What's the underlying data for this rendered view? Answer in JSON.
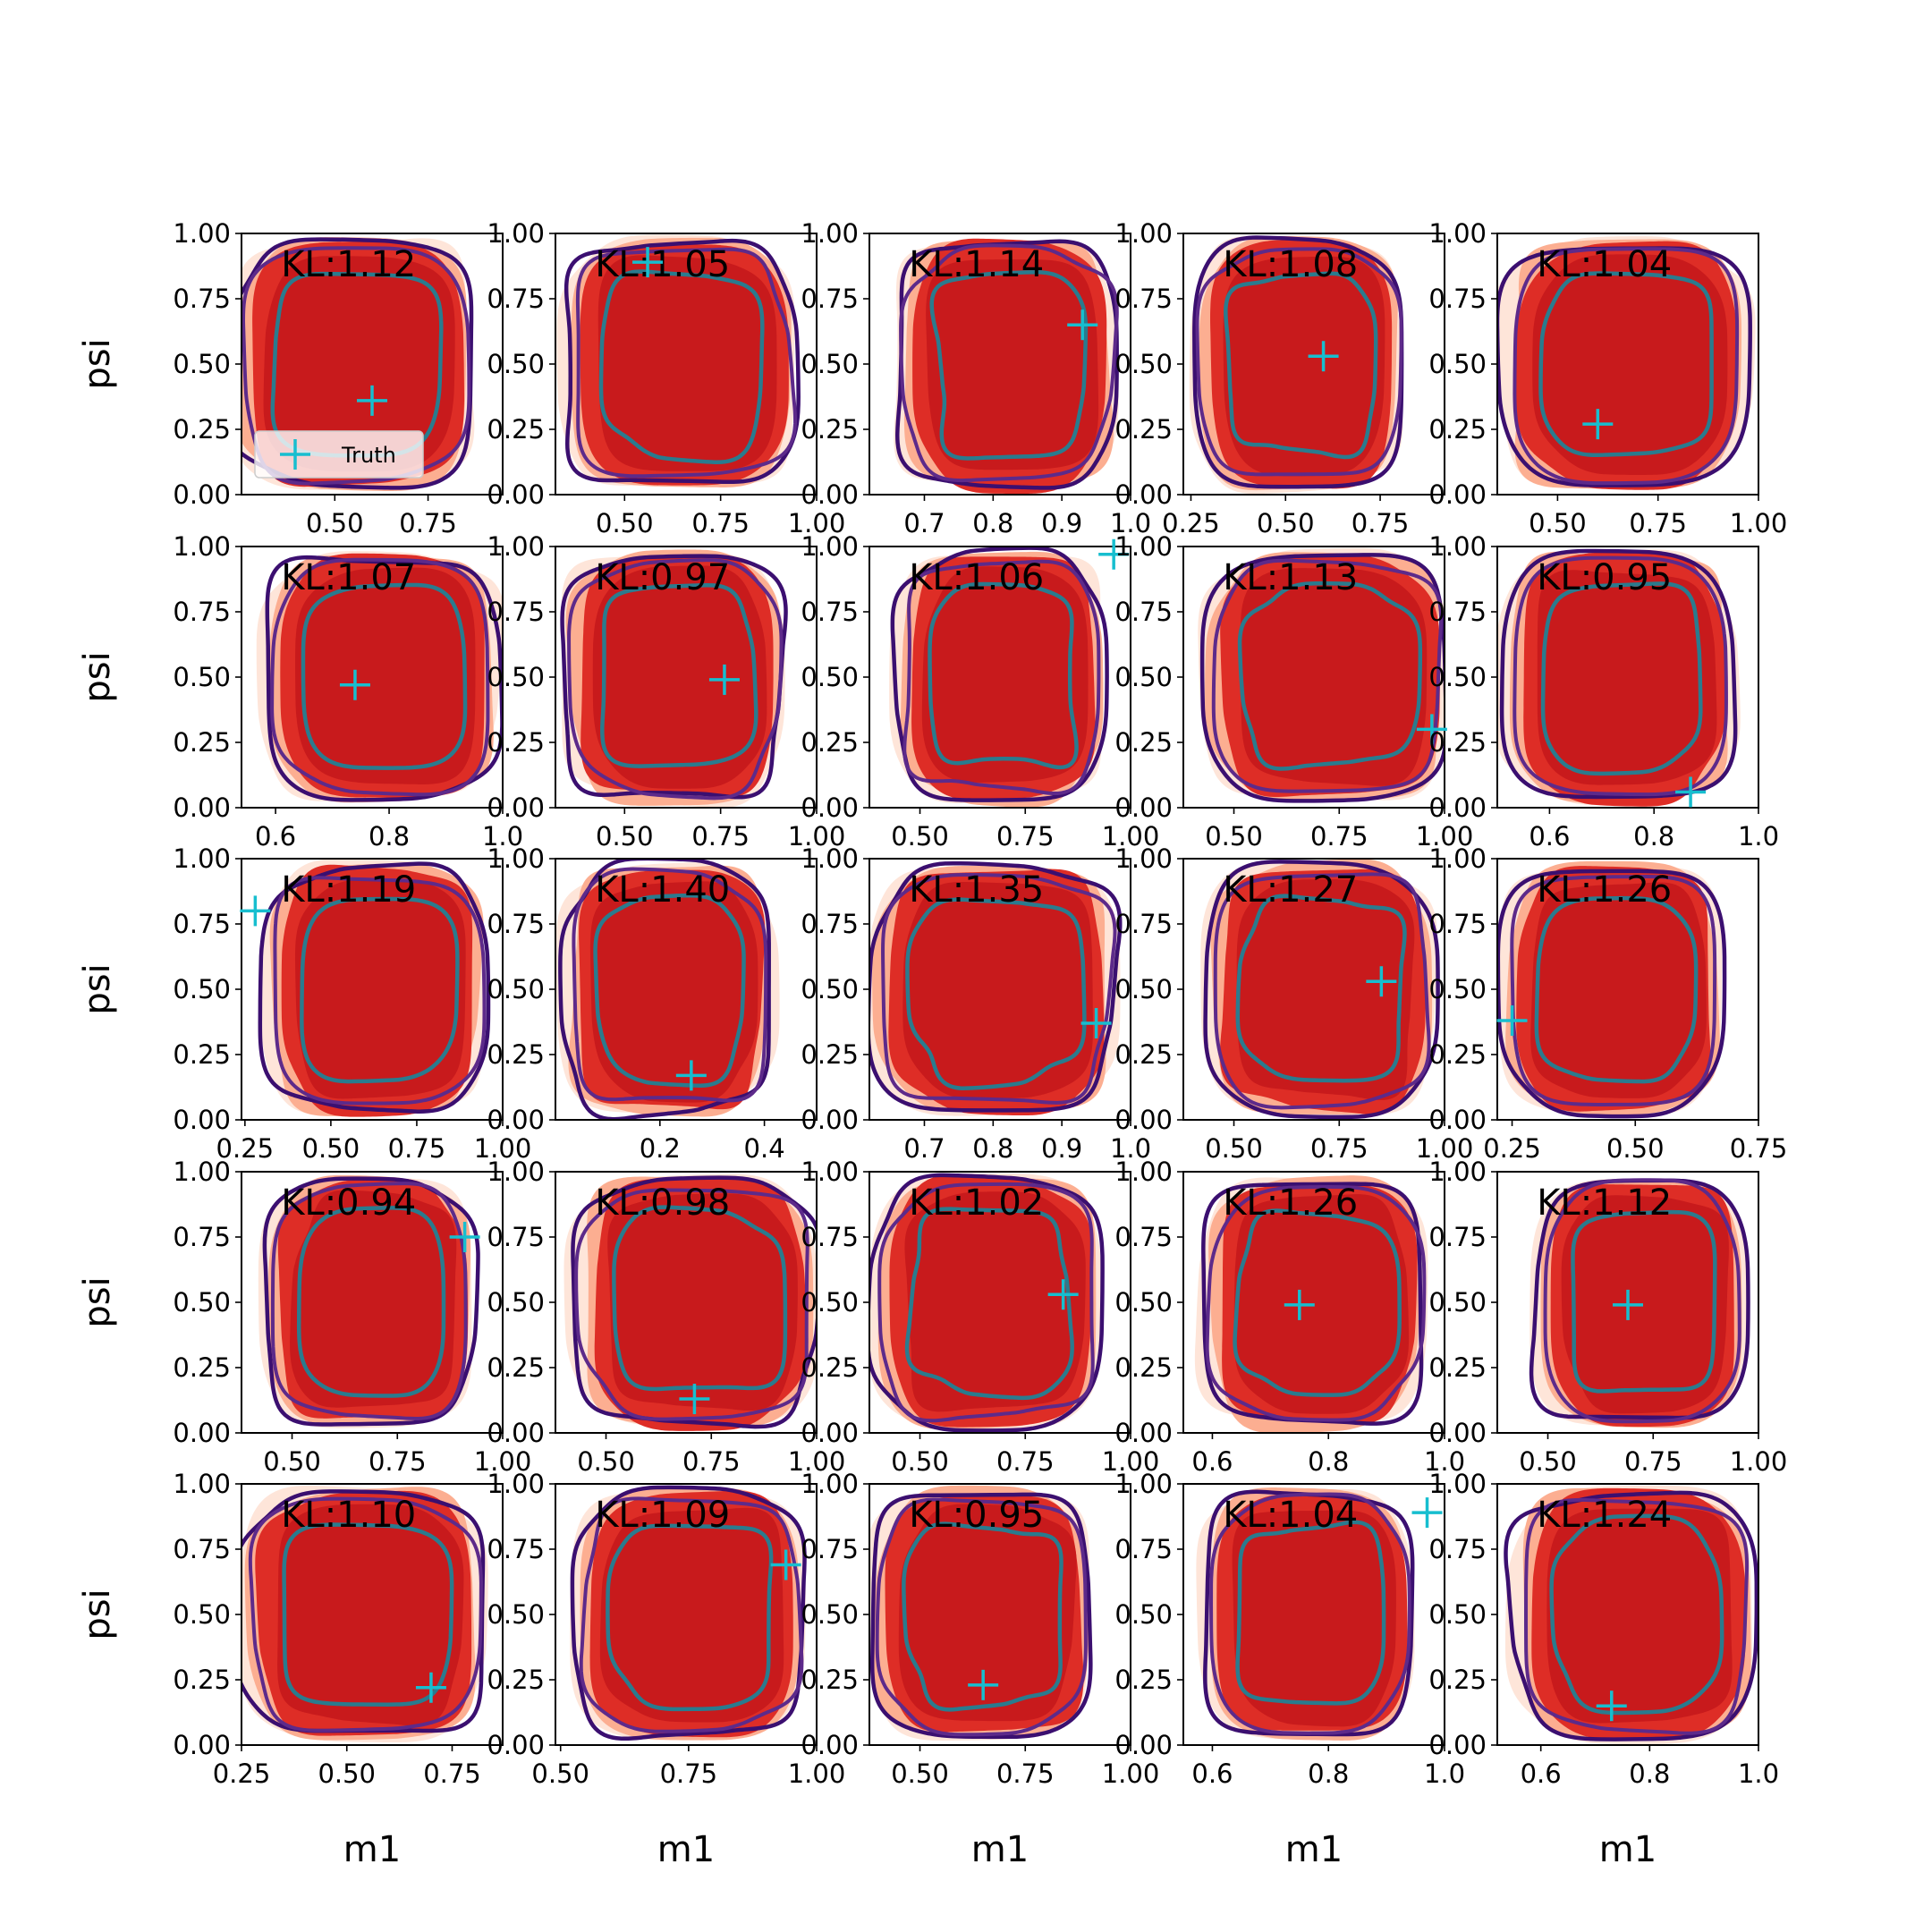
{
  "figure": {
    "ylabel": "psi",
    "xlabel": "m1",
    "legend_label": "Truth",
    "colors": {
      "fill_levels": [
        "#fee5d9",
        "#fcae91",
        "#de2d26",
        "#c81a1c"
      ],
      "outer_contour": "#3b0f70",
      "middle_contour": "#5d2a8a",
      "inner_contour": "#2a7b8e",
      "truth_marker": "#17becf",
      "axes": "#000000"
    }
  },
  "chart_data": [
    {
      "type": "contour",
      "title": "KL:1.12",
      "xticks": [
        "0.50",
        "0.75"
      ],
      "xlim": [
        0.25,
        0.95
      ],
      "ylim": [
        0,
        1
      ],
      "yticks": [
        "0.00",
        "0.25",
        "0.50",
        "0.75",
        "1.00"
      ],
      "truth": {
        "x": 0.6,
        "y": 0.36
      },
      "legend": "Truth"
    },
    {
      "type": "contour",
      "title": "KL:1.05",
      "xticks": [
        "0.50",
        "0.75",
        "1.00"
      ],
      "xlim": [
        0.32,
        1.0
      ],
      "ylim": [
        0,
        1
      ],
      "yticks": [
        "0.00",
        "0.25",
        "0.50",
        "0.75",
        "1.00"
      ],
      "truth": {
        "x": 0.56,
        "y": 0.89
      }
    },
    {
      "type": "contour",
      "title": "KL:1.14",
      "xticks": [
        "0.7",
        "0.8",
        "0.9",
        "1.0"
      ],
      "xlim": [
        0.62,
        1.0
      ],
      "ylim": [
        0,
        1
      ],
      "yticks": [
        "0.00",
        "0.25",
        "0.50",
        "0.75",
        "1.00"
      ],
      "truth": {
        "x": 0.93,
        "y": 0.65
      }
    },
    {
      "type": "contour",
      "title": "KL:1.08",
      "xticks": [
        "0.25",
        "0.50",
        "0.75"
      ],
      "xlim": [
        0.23,
        0.92
      ],
      "ylim": [
        0,
        1
      ],
      "yticks": [
        "0.00",
        "0.25",
        "0.50",
        "0.75",
        "1.00"
      ],
      "truth": {
        "x": 0.6,
        "y": 0.53
      }
    },
    {
      "type": "contour",
      "title": "KL:1.04",
      "xticks": [
        "0.50",
        "0.75",
        "1.00"
      ],
      "xlim": [
        0.35,
        1.0
      ],
      "ylim": [
        0,
        1
      ],
      "yticks": [
        "0.00",
        "0.25",
        "0.50",
        "0.75",
        "1.00"
      ],
      "truth": {
        "x": 0.6,
        "y": 0.27
      }
    },
    {
      "type": "contour",
      "title": "KL:1.07",
      "xticks": [
        "0.6",
        "0.8",
        "1.0"
      ],
      "xlim": [
        0.54,
        1.0
      ],
      "ylim": [
        0,
        1
      ],
      "yticks": [
        "0.00",
        "0.25",
        "0.50",
        "0.75",
        "1.00"
      ],
      "truth": {
        "x": 0.74,
        "y": 0.47
      }
    },
    {
      "type": "contour",
      "title": "KL:0.97",
      "xticks": [
        "0.50",
        "0.75",
        "1.00"
      ],
      "xlim": [
        0.32,
        1.0
      ],
      "ylim": [
        0,
        1
      ],
      "yticks": [
        "0.00",
        "0.25",
        "0.50",
        "0.75",
        "1.00"
      ],
      "truth": {
        "x": 0.76,
        "y": 0.49
      }
    },
    {
      "type": "contour",
      "title": "KL:1.06",
      "xticks": [
        "0.50",
        "0.75",
        "1.00"
      ],
      "xlim": [
        0.38,
        1.0
      ],
      "ylim": [
        0,
        1
      ],
      "yticks": [
        "0.00",
        "0.25",
        "0.50",
        "0.75",
        "1.00"
      ],
      "truth": {
        "x": 0.96,
        "y": 0.97
      }
    },
    {
      "type": "contour",
      "title": "KL:1.13",
      "xticks": [
        "0.50",
        "0.75",
        "1.00"
      ],
      "xlim": [
        0.38,
        1.0
      ],
      "ylim": [
        0,
        1
      ],
      "yticks": [
        "0.00",
        "0.25",
        "0.50",
        "0.75",
        "1.00"
      ],
      "truth": {
        "x": 0.97,
        "y": 0.3
      }
    },
    {
      "type": "contour",
      "title": "KL:0.95",
      "xticks": [
        "0.6",
        "0.8",
        "1.0"
      ],
      "xlim": [
        0.5,
        1.0
      ],
      "ylim": [
        0,
        1
      ],
      "yticks": [
        "0.00",
        "0.25",
        "0.50",
        "0.75",
        "1.00"
      ],
      "truth": {
        "x": 0.87,
        "y": 0.06
      }
    },
    {
      "type": "contour",
      "title": "KL:1.19",
      "xticks": [
        "0.25",
        "0.50",
        "0.75",
        "1.00"
      ],
      "xlim": [
        0.24,
        1.0
      ],
      "ylim": [
        0,
        1
      ],
      "yticks": [
        "0.00",
        "0.25",
        "0.50",
        "0.75",
        "1.00"
      ],
      "truth": {
        "x": 0.28,
        "y": 0.8
      }
    },
    {
      "type": "contour",
      "title": "KL:1.40",
      "xticks": [
        "0.2",
        "0.4"
      ],
      "xlim": [
        0.0,
        0.5
      ],
      "ylim": [
        0,
        1
      ],
      "yticks": [
        "0.00",
        "0.25",
        "0.50",
        "0.75",
        "1.00"
      ],
      "truth": {
        "x": 0.26,
        "y": 0.17
      }
    },
    {
      "type": "contour",
      "title": "KL:1.35",
      "xticks": [
        "0.7",
        "0.8",
        "0.9",
        "1.0"
      ],
      "xlim": [
        0.62,
        1.0
      ],
      "ylim": [
        0,
        1
      ],
      "yticks": [
        "0.00",
        "0.25",
        "0.50",
        "0.75",
        "1.00"
      ],
      "truth": {
        "x": 0.95,
        "y": 0.37
      }
    },
    {
      "type": "contour",
      "title": "KL:1.27",
      "xticks": [
        "0.50",
        "0.75",
        "1.00"
      ],
      "xlim": [
        0.38,
        1.0
      ],
      "ylim": [
        0,
        1
      ],
      "yticks": [
        "0.00",
        "0.25",
        "0.50",
        "0.75",
        "1.00"
      ],
      "truth": {
        "x": 0.85,
        "y": 0.53
      }
    },
    {
      "type": "contour",
      "title": "KL:1.26",
      "xticks": [
        "0.25",
        "0.50",
        "0.75"
      ],
      "xlim": [
        0.22,
        0.75
      ],
      "ylim": [
        0,
        1
      ],
      "yticks": [
        "0.00",
        "0.25",
        "0.50",
        "0.75",
        "1.00"
      ],
      "truth": {
        "x": 0.25,
        "y": 0.38
      }
    },
    {
      "type": "contour",
      "title": "KL:0.94",
      "xticks": [
        "0.50",
        "0.75",
        "1.00"
      ],
      "xlim": [
        0.38,
        1.0
      ],
      "ylim": [
        0,
        1
      ],
      "yticks": [
        "0.00",
        "0.25",
        "0.50",
        "0.75",
        "1.00"
      ],
      "truth": {
        "x": 0.91,
        "y": 0.75
      }
    },
    {
      "type": "contour",
      "title": "KL:0.98",
      "xticks": [
        "0.50",
        "0.75",
        "1.00"
      ],
      "xlim": [
        0.38,
        1.0
      ],
      "ylim": [
        0,
        1
      ],
      "yticks": [
        "0.00",
        "0.25",
        "0.50",
        "0.75",
        "1.00"
      ],
      "truth": {
        "x": 0.71,
        "y": 0.13
      }
    },
    {
      "type": "contour",
      "title": "KL:1.02",
      "xticks": [
        "0.50",
        "0.75",
        "1.00"
      ],
      "xlim": [
        0.38,
        1.0
      ],
      "ylim": [
        0,
        1
      ],
      "yticks": [
        "0.00",
        "0.25",
        "0.50",
        "0.75",
        "1.00"
      ],
      "truth": {
        "x": 0.84,
        "y": 0.53
      }
    },
    {
      "type": "contour",
      "title": "KL:1.26",
      "xticks": [
        "0.6",
        "0.8",
        "1.0"
      ],
      "xlim": [
        0.55,
        1.0
      ],
      "ylim": [
        0,
        1
      ],
      "yticks": [
        "0.00",
        "0.25",
        "0.50",
        "0.75",
        "1.00"
      ],
      "truth": {
        "x": 0.75,
        "y": 0.49
      }
    },
    {
      "type": "contour",
      "title": "KL:1.12",
      "xticks": [
        "0.50",
        "0.75",
        "1.00"
      ],
      "xlim": [
        0.38,
        1.0
      ],
      "ylim": [
        0,
        1
      ],
      "yticks": [
        "0.00",
        "0.25",
        "0.50",
        "0.75",
        "1.00"
      ],
      "truth": {
        "x": 0.69,
        "y": 0.49
      }
    },
    {
      "type": "contour",
      "title": "KL:1.10",
      "xticks": [
        "0.25",
        "0.50",
        "0.75"
      ],
      "xlim": [
        0.25,
        0.87
      ],
      "ylim": [
        0,
        1
      ],
      "yticks": [
        "0.00",
        "0.25",
        "0.50",
        "0.75",
        "1.00"
      ],
      "truth": {
        "x": 0.7,
        "y": 0.22
      }
    },
    {
      "type": "contour",
      "title": "KL:1.09",
      "xticks": [
        "0.50",
        "0.75",
        "1.00"
      ],
      "xlim": [
        0.49,
        1.0
      ],
      "ylim": [
        0,
        1
      ],
      "yticks": [
        "0.00",
        "0.25",
        "0.50",
        "0.75",
        "1.00"
      ],
      "truth": {
        "x": 0.94,
        "y": 0.69
      }
    },
    {
      "type": "contour",
      "title": "KL:0.95",
      "xticks": [
        "0.50",
        "0.75",
        "1.00"
      ],
      "xlim": [
        0.38,
        1.0
      ],
      "ylim": [
        0,
        1
      ],
      "yticks": [
        "0.00",
        "0.25",
        "0.50",
        "0.75",
        "1.00"
      ],
      "truth": {
        "x": 0.65,
        "y": 0.23
      }
    },
    {
      "type": "contour",
      "title": "KL:1.04",
      "xticks": [
        "0.6",
        "0.8",
        "1.0"
      ],
      "xlim": [
        0.55,
        1.0
      ],
      "ylim": [
        0,
        1
      ],
      "yticks": [
        "0.00",
        "0.25",
        "0.50",
        "0.75",
        "1.00"
      ],
      "truth": {
        "x": 0.97,
        "y": 0.89
      }
    },
    {
      "type": "contour",
      "title": "KL:1.24",
      "xticks": [
        "0.6",
        "0.8",
        "1.0"
      ],
      "xlim": [
        0.52,
        1.0
      ],
      "ylim": [
        0,
        1
      ],
      "yticks": [
        "0.00",
        "0.25",
        "0.50",
        "0.75",
        "1.00"
      ],
      "truth": {
        "x": 0.73,
        "y": 0.15
      }
    }
  ]
}
